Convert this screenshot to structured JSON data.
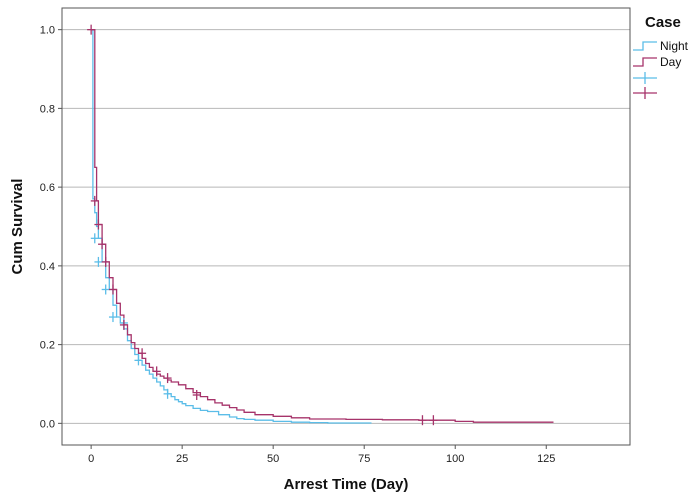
{
  "chart_data": {
    "type": "line",
    "subtype": "kaplan-meier step",
    "xlabel": "Arrest Time (Day)",
    "ylabel": "Cum Survival",
    "xlim": [
      -8,
      148
    ],
    "ylim": [
      -0.055,
      1.055
    ],
    "x_ticks": [
      0,
      25,
      50,
      75,
      100,
      125
    ],
    "y_ticks": [
      0.0,
      0.2,
      0.4,
      0.6,
      0.8,
      1.0
    ],
    "y_tick_labels": [
      "0.0",
      "0.2",
      "0.4",
      "0.6",
      "0.8",
      "1.0"
    ],
    "grid": "horizontal",
    "legend": {
      "title": "Case",
      "placement": "top-right",
      "entries": [
        {
          "label": "Night",
          "kind": "line",
          "color": "#5bbde8"
        },
        {
          "label": "Day",
          "kind": "line",
          "color": "#a6336a"
        },
        {
          "label": "",
          "kind": "censor",
          "color": "#5bbde8"
        },
        {
          "label": "",
          "kind": "censor",
          "color": "#a6336a"
        }
      ]
    },
    "series": [
      {
        "name": "Night",
        "color": "#5bbde8",
        "step_x": [
          0,
          0.5,
          1,
          1.5,
          2,
          3,
          4,
          5,
          6,
          7,
          8,
          9,
          10,
          11,
          12,
          13,
          14,
          15,
          16,
          17,
          18,
          19,
          20,
          21,
          22,
          23,
          24,
          25,
          26,
          28,
          30,
          32,
          35,
          38,
          40,
          42,
          45,
          50,
          55,
          60,
          65,
          77
        ],
        "step_y": [
          1.0,
          0.57,
          0.535,
          0.5,
          0.47,
          0.41,
          0.37,
          0.34,
          0.3,
          0.27,
          0.255,
          0.24,
          0.21,
          0.19,
          0.175,
          0.16,
          0.148,
          0.135,
          0.125,
          0.115,
          0.105,
          0.095,
          0.085,
          0.075,
          0.068,
          0.06,
          0.055,
          0.05,
          0.045,
          0.038,
          0.033,
          0.03,
          0.022,
          0.016,
          0.012,
          0.01,
          0.008,
          0.005,
          0.003,
          0.002,
          0.001,
          0.001
        ],
        "censor_x": [
          1,
          2,
          4,
          6,
          9,
          13,
          21
        ],
        "censor_y": [
          0.47,
          0.41,
          0.34,
          0.27,
          0.255,
          0.16,
          0.075
        ]
      },
      {
        "name": "Day",
        "color": "#a6336a",
        "step_x": [
          0,
          1,
          1.5,
          2,
          3,
          4,
          5,
          6,
          7,
          8,
          9,
          10,
          11,
          12,
          13,
          14,
          15,
          16,
          17,
          18,
          19,
          20,
          21,
          22,
          24,
          26,
          28,
          30,
          32,
          34,
          36,
          38,
          40,
          42,
          45,
          50,
          55,
          60,
          70,
          80,
          90,
          95,
          100,
          105,
          127
        ],
        "step_y": [
          1.0,
          0.65,
          0.565,
          0.505,
          0.455,
          0.41,
          0.37,
          0.34,
          0.305,
          0.275,
          0.25,
          0.225,
          0.205,
          0.19,
          0.178,
          0.165,
          0.152,
          0.142,
          0.132,
          0.125,
          0.12,
          0.115,
          0.11,
          0.105,
          0.098,
          0.088,
          0.078,
          0.068,
          0.06,
          0.052,
          0.046,
          0.04,
          0.034,
          0.028,
          0.022,
          0.018,
          0.014,
          0.011,
          0.01,
          0.009,
          0.008,
          0.008,
          0.005,
          0.003,
          0.003
        ],
        "censor_x": [
          0,
          1,
          2,
          3,
          4,
          6,
          9,
          14,
          18,
          21,
          29,
          91,
          94
        ],
        "censor_y": [
          1.0,
          0.565,
          0.505,
          0.455,
          0.41,
          0.34,
          0.25,
          0.178,
          0.132,
          0.115,
          0.072,
          0.008,
          0.008
        ]
      }
    ]
  }
}
